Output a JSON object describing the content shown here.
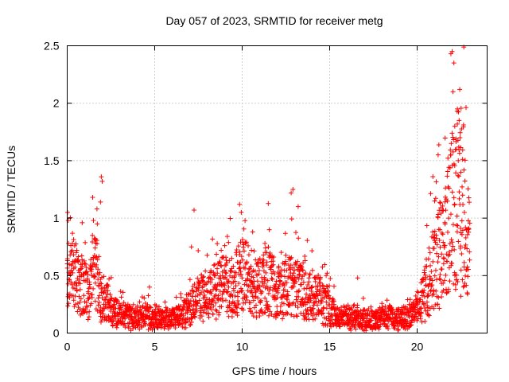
{
  "chart_data": {
    "type": "scatter",
    "title": "Day 057 of 2023, SRMTID for receiver metg",
    "xlabel": "GPS time / hours",
    "ylabel": "SRMTID / TECUs",
    "xlim": [
      0,
      24
    ],
    "ylim": [
      0,
      2.5
    ],
    "x_ticks": [
      0,
      5,
      10,
      15,
      20
    ],
    "x_tick_labels": [
      "0",
      "5",
      "10",
      "15",
      "20"
    ],
    "y_ticks": [
      0,
      0.5,
      1,
      1.5,
      2,
      2.5
    ],
    "y_tick_labels": [
      "0",
      "0.5",
      "1",
      "1.5",
      "2",
      "2.5"
    ],
    "grid": true,
    "marker": "+",
    "series": [
      {
        "name": "SRMTID",
        "color": "#ff0000",
        "x_start": 0,
        "x_end": 23.0,
        "x_step": 0.02,
        "baseline": [
          [
            0.0,
            0.48
          ],
          [
            0.4,
            0.5
          ],
          [
            0.8,
            0.42
          ],
          [
            1.2,
            0.35
          ],
          [
            1.6,
            0.55
          ],
          [
            2.0,
            0.32
          ],
          [
            2.5,
            0.2
          ],
          [
            3.0,
            0.16
          ],
          [
            3.5,
            0.15
          ],
          [
            4.0,
            0.13
          ],
          [
            4.5,
            0.15
          ],
          [
            5.0,
            0.14
          ],
          [
            5.5,
            0.12
          ],
          [
            6.0,
            0.13
          ],
          [
            6.5,
            0.14
          ],
          [
            7.0,
            0.22
          ],
          [
            7.5,
            0.3
          ],
          [
            8.0,
            0.32
          ],
          [
            8.5,
            0.38
          ],
          [
            9.0,
            0.42
          ],
          [
            9.5,
            0.4
          ],
          [
            10.0,
            0.52
          ],
          [
            10.5,
            0.45
          ],
          [
            11.0,
            0.4
          ],
          [
            11.5,
            0.48
          ],
          [
            12.0,
            0.35
          ],
          [
            12.5,
            0.4
          ],
          [
            13.0,
            0.42
          ],
          [
            13.5,
            0.35
          ],
          [
            14.0,
            0.3
          ],
          [
            14.5,
            0.28
          ],
          [
            15.0,
            0.2
          ],
          [
            15.5,
            0.14
          ],
          [
            16.0,
            0.13
          ],
          [
            16.5,
            0.14
          ],
          [
            17.0,
            0.13
          ],
          [
            17.5,
            0.11
          ],
          [
            18.0,
            0.14
          ],
          [
            18.5,
            0.13
          ],
          [
            19.0,
            0.12
          ],
          [
            19.5,
            0.14
          ],
          [
            20.0,
            0.2
          ],
          [
            20.5,
            0.35
          ],
          [
            21.0,
            0.6
          ],
          [
            21.5,
            0.75
          ],
          [
            22.0,
            1.1
          ],
          [
            22.5,
            1.25
          ],
          [
            23.0,
            0.75
          ]
        ],
        "spikes": [
          [
            0.02,
            1.05
          ],
          [
            0.06,
            0.98
          ],
          [
            0.3,
            0.78
          ],
          [
            0.55,
            0.72
          ],
          [
            1.5,
            0.98
          ],
          [
            1.7,
            1.08
          ],
          [
            1.95,
            1.36
          ],
          [
            2.0,
            1.32
          ],
          [
            1.9,
            1.14
          ],
          [
            4.7,
            0.4
          ],
          [
            7.1,
            0.75
          ],
          [
            7.25,
            1.07
          ],
          [
            8.8,
            0.72
          ],
          [
            9.4,
            0.65
          ],
          [
            9.85,
            1.12
          ],
          [
            9.95,
            1.05
          ],
          [
            10.2,
            0.78
          ],
          [
            10.6,
            0.88
          ],
          [
            11.3,
            0.78
          ],
          [
            12.8,
            1.22
          ],
          [
            12.9,
            1.25
          ],
          [
            13.2,
            1.1
          ],
          [
            13.6,
            0.63
          ],
          [
            14.8,
            0.5
          ],
          [
            16.6,
            0.48
          ],
          [
            21.2,
            1.55
          ],
          [
            21.0,
            1.15
          ],
          [
            21.6,
            0.95
          ],
          [
            21.8,
            1.0
          ],
          [
            22.0,
            2.45
          ],
          [
            22.1,
            2.35
          ],
          [
            22.05,
            2.1
          ],
          [
            22.15,
            1.8
          ],
          [
            22.3,
            1.95
          ],
          [
            22.4,
            1.85
          ],
          [
            22.45,
            1.7
          ],
          [
            22.35,
            1.5
          ],
          [
            22.5,
            1.4
          ],
          [
            22.6,
            1.2
          ],
          [
            22.7,
            1.05
          ],
          [
            22.9,
            0.9
          ],
          [
            22.8,
            0.55
          ],
          [
            22.5,
            0.32
          ],
          [
            22.2,
            0.38
          ],
          [
            21.95,
            1.65
          ],
          [
            22.25,
            1.6
          ]
        ]
      }
    ]
  }
}
